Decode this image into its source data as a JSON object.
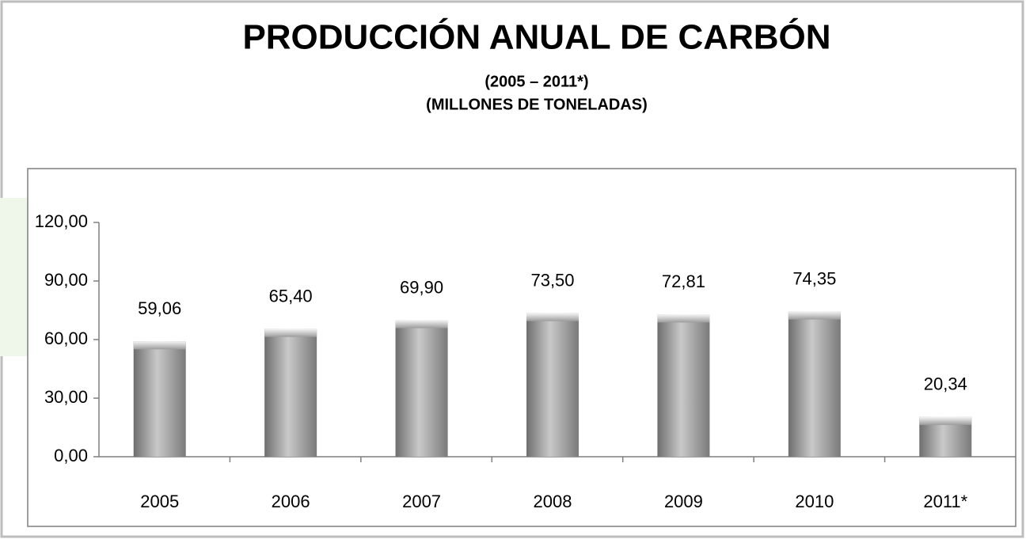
{
  "chart_data": {
    "type": "bar",
    "title": "PRODUCCIÓN ANUAL DE CARBÓN",
    "subtitle": [
      "(2005 – 2011*)",
      "(MILLONES DE TONELADAS)"
    ],
    "categories": [
      "2005",
      "2006",
      "2007",
      "2008",
      "2009",
      "2010",
      "2011*"
    ],
    "values": [
      59.06,
      65.4,
      69.9,
      73.5,
      72.81,
      74.35,
      20.34
    ],
    "value_labels": [
      "59,06",
      "65,40",
      "69,90",
      "73,50",
      "72,81",
      "74,35",
      "20,34"
    ],
    "color": "#9a9a9a",
    "ylim": [
      0,
      120
    ],
    "yticks": [
      {
        "value": 0,
        "label": "0,00"
      },
      {
        "value": 30,
        "label": "30,00"
      },
      {
        "value": 60,
        "label": "60,00"
      },
      {
        "value": 90,
        "label": "90,00"
      },
      {
        "value": 120,
        "label": "120,00"
      }
    ],
    "grid": false
  }
}
